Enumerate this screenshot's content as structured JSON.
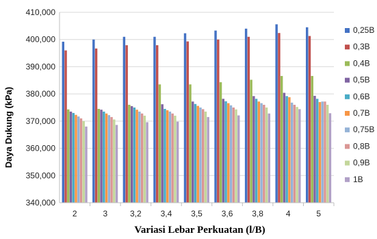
{
  "chart_data": {
    "type": "bar",
    "title": "",
    "xlabel": "Variasi Lebar Perkuatan (l/B)",
    "ylabel": "Daya Dukung (kPa)",
    "ylim": [
      340000,
      410000
    ],
    "yticks": [
      340000,
      350000,
      360000,
      370000,
      380000,
      390000,
      400000,
      410000
    ],
    "ytick_labels": [
      "340,000",
      "350,000",
      "360,000",
      "370,000",
      "380,000",
      "390,000",
      "400,000",
      "410,000"
    ],
    "grid": true,
    "legend_position": "right",
    "categories": [
      "2",
      "3",
      "3,2",
      "3,4",
      "3,5",
      "3,6",
      "3,8",
      "4",
      "5"
    ],
    "series": [
      {
        "name": "0,25B",
        "color": "#4472C4",
        "values": [
          399200,
          400000,
          401000,
          401000,
          402300,
          403300,
          404000,
          405600,
          404500
        ]
      },
      {
        "name": "0,3B",
        "color": "#C0504D",
        "values": [
          396000,
          396700,
          397900,
          397900,
          399300,
          400000,
          401000,
          402400,
          401300
        ]
      },
      {
        "name": "0,4B",
        "color": "#9BBB59",
        "values": [
          374300,
          374500,
          376000,
          383500,
          383500,
          384300,
          385200,
          386600,
          386600
        ]
      },
      {
        "name": "0,5B",
        "color": "#8064A2",
        "values": [
          373500,
          374200,
          375500,
          376200,
          377200,
          378200,
          379200,
          380400,
          379300
        ]
      },
      {
        "name": "0,6B",
        "color": "#4BACC6",
        "values": [
          373000,
          373500,
          375000,
          374500,
          376300,
          377300,
          378200,
          379200,
          378200
        ]
      },
      {
        "name": "0,7B",
        "color": "#F79646",
        "values": [
          372300,
          372800,
          374200,
          374000,
          375600,
          376600,
          377200,
          378800,
          377000
        ]
      },
      {
        "name": "0,75B",
        "color": "#95B3D7",
        "values": [
          371700,
          372200,
          373500,
          373500,
          375000,
          375800,
          376600,
          376800,
          377200
        ]
      },
      {
        "name": "0,8B",
        "color": "#DA9694",
        "values": [
          371000,
          371500,
          372800,
          372800,
          374400,
          375000,
          376000,
          376000,
          377200
        ]
      },
      {
        "name": "0,9B",
        "color": "#C4D79B",
        "values": [
          370000,
          370600,
          372000,
          372000,
          373500,
          374300,
          375000,
          375200,
          376000
        ]
      },
      {
        "name": "1B",
        "color": "#B1A0C7",
        "values": [
          368000,
          368600,
          369600,
          369800,
          371500,
          372100,
          372800,
          374400,
          372900
        ]
      }
    ]
  }
}
